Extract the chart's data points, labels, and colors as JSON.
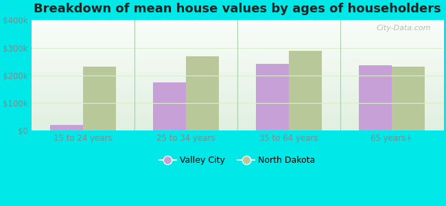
{
  "title": "Breakdown of mean house values by ages of householders",
  "categories": [
    "15 to 24 years",
    "25 to 34 years",
    "35 to 64 years",
    "65 years+"
  ],
  "valley_city": [
    20000,
    175000,
    242000,
    237000
  ],
  "north_dakota": [
    232000,
    270000,
    290000,
    232000
  ],
  "valley_city_color": "#c8a0d8",
  "north_dakota_color": "#b8c898",
  "background_color": "#00e8e8",
  "plot_bg_top": "#e8f8f0",
  "plot_bg_bottom": "#d0f0d8",
  "ylim": [
    0,
    400000
  ],
  "yticks": [
    0,
    100000,
    200000,
    300000,
    400000
  ],
  "ytick_labels": [
    "$0",
    "$100k",
    "$200k",
    "$300k",
    "$400k"
  ],
  "legend_labels": [
    "Valley City",
    "North Dakota"
  ],
  "watermark": "City-Data.com",
  "title_fontsize": 13,
  "bar_width": 0.32,
  "tick_color": "#888888",
  "grid_color": "#ddeecc",
  "divider_color": "#aaccaa"
}
